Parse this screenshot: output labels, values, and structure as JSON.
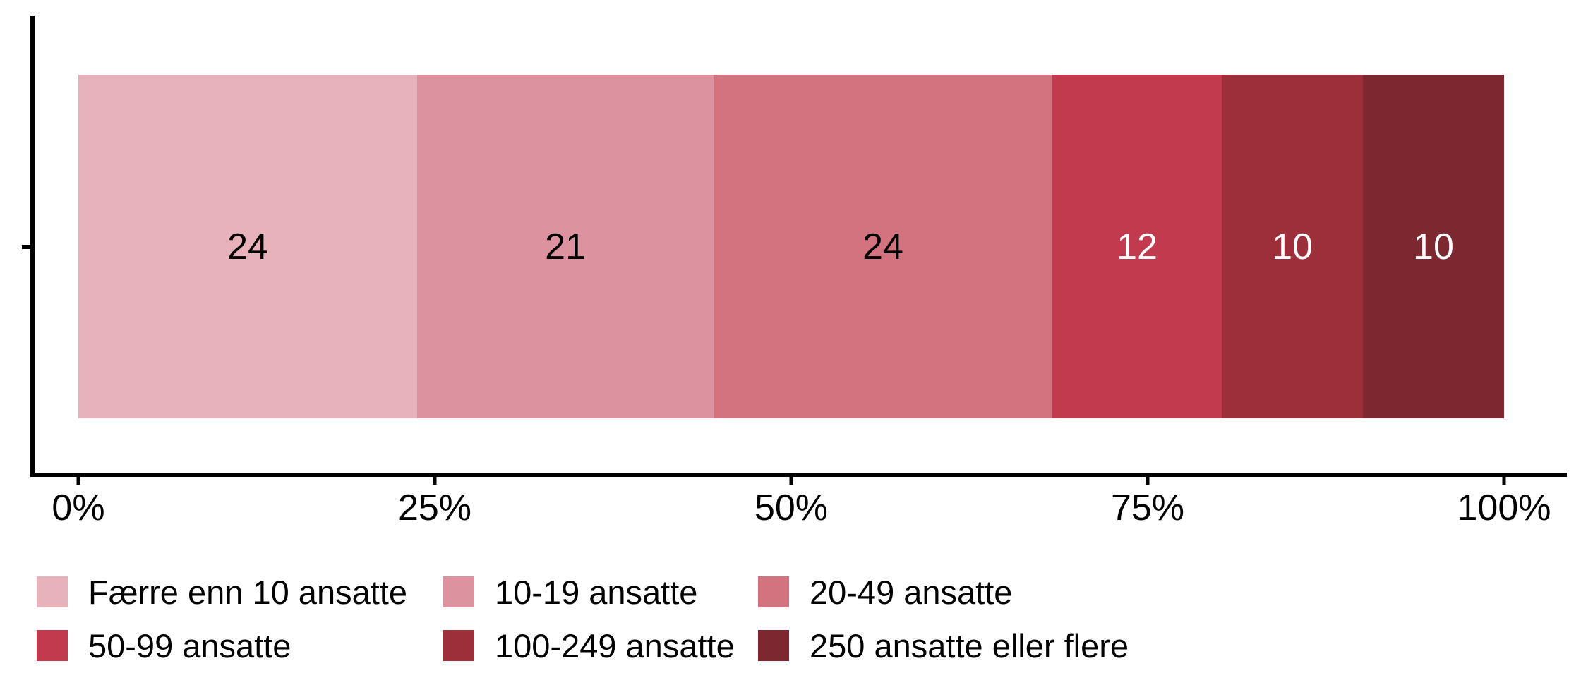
{
  "chart_data": {
    "type": "bar",
    "orientation": "horizontal",
    "stacked": true,
    "title": "",
    "xlabel": "",
    "ylabel": "",
    "xlim": [
      0,
      100
    ],
    "grid": false,
    "legend_position": "bottom",
    "legend_rows": 2,
    "categories": [
      "Færre enn 10 ansatte",
      "10-19 ansatte",
      "20-49 ansatte",
      "50-99 ansatte",
      "100-249 ansatte",
      "250 ansatte eller flere"
    ],
    "values": [
      24,
      21,
      24,
      12,
      10,
      10
    ],
    "value_labels": [
      "24",
      "21",
      "24",
      "12",
      "10",
      "10"
    ],
    "colors": [
      "#E8B2BB",
      "#DC939F",
      "#D3737F",
      "#C13A4D",
      "#9C2F3A",
      "#7D2731"
    ],
    "value_label_colors": [
      "#000000",
      "#000000",
      "#000000",
      "#ffffff",
      "#ffffff",
      "#ffffff"
    ],
    "x_ticks": [
      "0%",
      "25%",
      "50%",
      "75%",
      "100%"
    ],
    "x_tick_values": [
      0,
      25,
      50,
      75,
      100
    ],
    "axis_color": "#000000",
    "background_color": "#ffffff"
  }
}
